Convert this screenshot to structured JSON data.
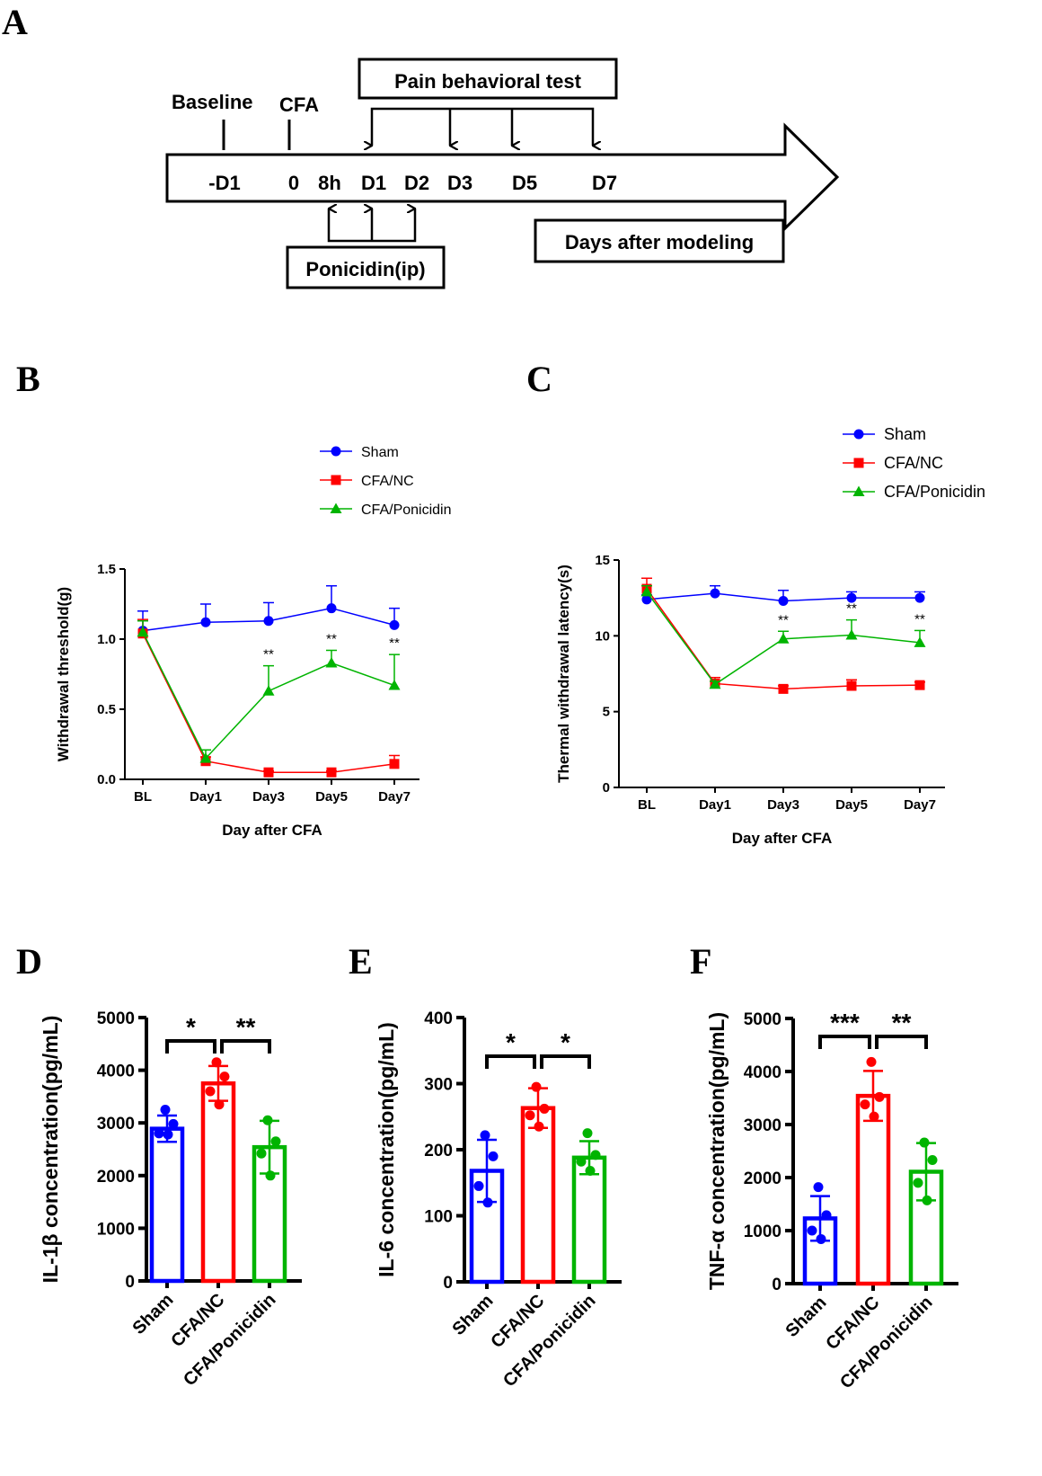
{
  "panels": {
    "A": "A",
    "B": "B",
    "C": "C",
    "D": "D",
    "E": "E",
    "F": "F"
  },
  "timeline": {
    "top_labels": [
      "Baseline",
      "CFA"
    ],
    "pain_box": "Pain behavioral test",
    "arrow_labels": [
      "-D1",
      "0",
      "8h",
      "D1",
      "D2",
      "D3",
      "D5",
      "D7"
    ],
    "ponicidin_box": "Ponicidin(ip)",
    "days_box": "Days after modeling"
  },
  "colors": {
    "Sham": "#0000ff",
    "CFA/NC": "#ff0000",
    "CFA/Ponicidin": "#00b400"
  },
  "chart_data": [
    {
      "id": "B",
      "type": "line",
      "xlabel": "Day after CFA",
      "ylabel": "Withdrawal threshold(g)",
      "categories": [
        "BL",
        "Day1",
        "Day3",
        "Day5",
        "Day7"
      ],
      "ylim": [
        0,
        1.5
      ],
      "yticks": [
        "0.0",
        "0.5",
        "1.0",
        "1.5"
      ],
      "legend": [
        "Sham",
        "CFA/NC",
        "CFA/Ponicidin"
      ],
      "series": [
        {
          "name": "Sham",
          "values": [
            1.06,
            1.12,
            1.13,
            1.22,
            1.1
          ],
          "err": [
            0.14,
            0.13,
            0.13,
            0.16,
            0.12
          ]
        },
        {
          "name": "CFA/NC",
          "values": [
            1.04,
            0.13,
            0.05,
            0.05,
            0.11
          ],
          "err": [
            0.1,
            0.03,
            0.01,
            0.01,
            0.06
          ]
        },
        {
          "name": "CFA/Ponicidin",
          "values": [
            1.05,
            0.15,
            0.63,
            0.83,
            0.67
          ],
          "err": [
            0.08,
            0.06,
            0.18,
            0.09,
            0.22
          ]
        }
      ],
      "annotations": [
        {
          "category": "Day3",
          "text": "**"
        },
        {
          "category": "Day5",
          "text": "**"
        },
        {
          "category": "Day7",
          "text": "**"
        }
      ]
    },
    {
      "id": "C",
      "type": "line",
      "xlabel": "Day after CFA",
      "ylabel": "Thermal withdrawal latency(s)",
      "categories": [
        "BL",
        "Day1",
        "Day3",
        "Day5",
        "Day7"
      ],
      "ylim": [
        0,
        15
      ],
      "yticks": [
        "0",
        "5",
        "10",
        "15"
      ],
      "legend": [
        "Sham",
        "CFA/NC",
        "CFA/Ponicidin"
      ],
      "series": [
        {
          "name": "Sham",
          "values": [
            12.4,
            12.8,
            12.3,
            12.5,
            12.5
          ],
          "err": [
            0.3,
            0.5,
            0.7,
            0.4,
            0.4
          ]
        },
        {
          "name": "CFA/NC",
          "values": [
            13.1,
            6.85,
            6.5,
            6.7,
            6.75
          ],
          "err": [
            0.7,
            0.4,
            0.2,
            0.4,
            0.2
          ]
        },
        {
          "name": "CFA/Ponicidin",
          "values": [
            12.9,
            6.8,
            9.8,
            10.05,
            9.55
          ],
          "err": [
            0.4,
            0.2,
            0.5,
            1.0,
            0.8
          ]
        }
      ],
      "annotations": [
        {
          "category": "Day3",
          "text": "**"
        },
        {
          "category": "Day5",
          "text": "**"
        },
        {
          "category": "Day7",
          "text": "**"
        }
      ]
    },
    {
      "id": "D",
      "type": "bar",
      "ylabel": "IL-1β concentration(pg/mL)",
      "categories": [
        "Sham",
        "CFA/NC",
        "CFA/Ponicidin"
      ],
      "ylim": [
        0,
        5000
      ],
      "yticks": [
        "0",
        "1000",
        "2000",
        "3000",
        "4000",
        "5000"
      ],
      "values": [
        2890,
        3750,
        2540
      ],
      "err": [
        250,
        330,
        500
      ],
      "points": [
        [
          3250,
          2980,
          2800,
          2780
        ],
        [
          4150,
          3880,
          3600,
          3350
        ],
        [
          3050,
          2650,
          2420,
          2000
        ]
      ],
      "significance": [
        "*",
        "**"
      ]
    },
    {
      "id": "E",
      "type": "bar",
      "ylabel": "IL-6 concentration(pg/mL)",
      "categories": [
        "Sham",
        "CFA/NC",
        "CFA/Ponicidin"
      ],
      "ylim": [
        0,
        400
      ],
      "yticks": [
        "0",
        "100",
        "200",
        "300",
        "400"
      ],
      "values": [
        168,
        263,
        188
      ],
      "err": [
        47,
        30,
        25
      ],
      "points": [
        [
          222,
          190,
          145,
          120
        ],
        [
          295,
          262,
          252,
          235
        ],
        [
          225,
          192,
          182,
          168
        ]
      ],
      "significance": [
        "*",
        "*"
      ]
    },
    {
      "id": "F",
      "type": "bar",
      "ylabel": "TNF-α concentration(pg/mL)",
      "categories": [
        "Sham",
        "CFA/NC",
        "CFA/Ponicidin"
      ],
      "ylim": [
        0,
        5000
      ],
      "yticks": [
        "0",
        "1000",
        "2000",
        "3000",
        "4000",
        "5000"
      ],
      "values": [
        1230,
        3540,
        2110
      ],
      "err": [
        420,
        470,
        540
      ],
      "points": [
        [
          1820,
          1290,
          1000,
          840
        ],
        [
          4180,
          3520,
          3380,
          3150
        ],
        [
          2660,
          2330,
          1900,
          1570
        ]
      ],
      "significance": [
        "***",
        "**"
      ]
    }
  ]
}
